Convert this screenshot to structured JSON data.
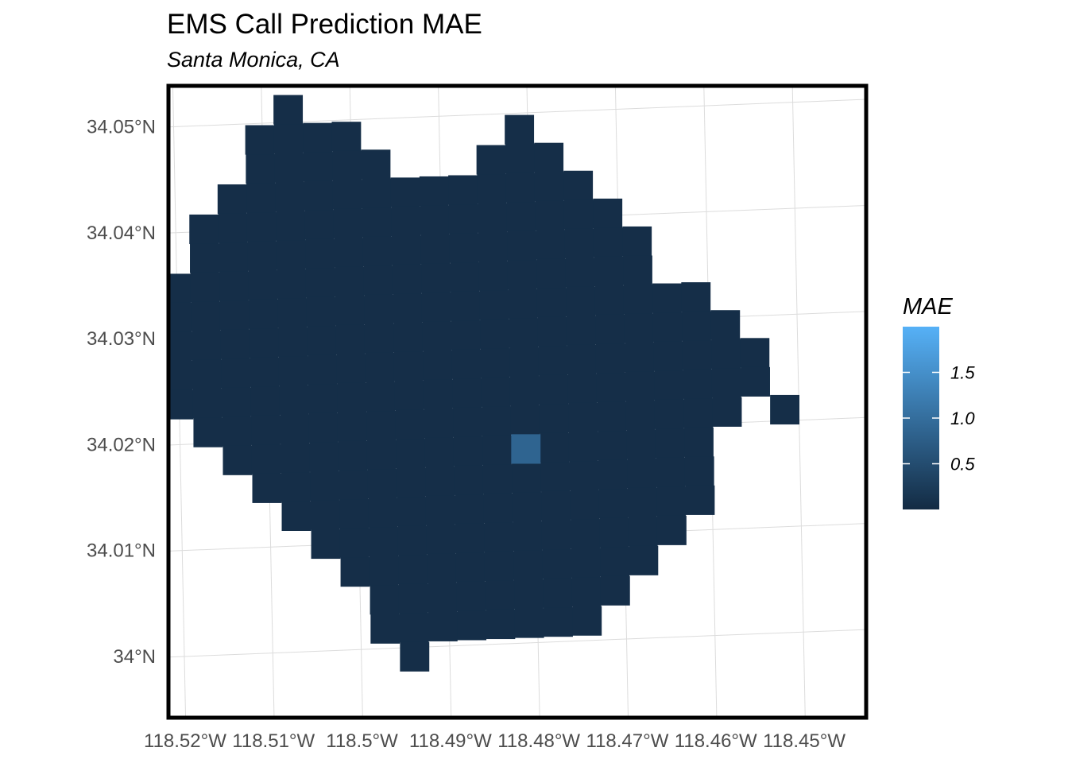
{
  "chart_data": {
    "type": "heatmap",
    "title": "EMS Call Prediction MAE",
    "subtitle": "Santa Monica, CA",
    "x_ticks": [
      "118.52°W",
      "118.51°W",
      "118.5°W",
      "118.49°W",
      "118.48°W",
      "118.47°W",
      "118.46°W",
      "118.45°W"
    ],
    "y_ticks": [
      "34.05°N",
      "34.04°N",
      "34.03°N",
      "34.02°N",
      "34.01°N",
      "34°N"
    ],
    "xlim": [
      -118.52,
      -118.441
    ],
    "ylim": [
      33.9965,
      34.0535
    ],
    "grid": true,
    "legend": {
      "title": "MAE",
      "ticks": [
        "0.5",
        "1.0",
        "1.5"
      ],
      "tick_values": [
        0.5,
        1.0,
        1.5
      ],
      "range": [
        0.0,
        2.0
      ],
      "low_color": "#132B43",
      "high_color": "#56B1F7",
      "placement": "right"
    },
    "cell_lon_width": 0.00326,
    "cell_lat_height": 0.00274,
    "default_mae": 0.05,
    "rows": [
      {
        "lat": 34.0512,
        "lon_start": -118.50705,
        "lon_end": -118.50705
      },
      {
        "lat": 34.04846,
        "lon_start": -118.51031,
        "lon_end": -118.50053
      },
      {
        "lat": 34.04846,
        "lon_start": -118.48097,
        "lon_end": -118.48097
      },
      {
        "lat": 34.04572,
        "lon_start": -118.51031,
        "lon_end": -118.49727
      },
      {
        "lat": 34.04572,
        "lon_start": -118.48423,
        "lon_end": -118.47771
      },
      {
        "lat": 34.04298,
        "lon_start": -118.51357,
        "lon_end": -118.47445
      },
      {
        "lat": 34.04024,
        "lon_start": -118.51683,
        "lon_end": -118.47119
      },
      {
        "lat": 34.0375,
        "lon_start": -118.51683,
        "lon_end": -118.46793
      },
      {
        "lat": 34.03476,
        "lon_start": -118.52009,
        "lon_end": -118.47119
      },
      {
        "lat": 34.03476,
        "lon_start": -118.46793,
        "lon_end": -118.46793
      },
      {
        "lat": 34.03202,
        "lon_start": -118.52335,
        "lon_end": -118.46141
      },
      {
        "lat": 34.02928,
        "lon_start": -118.52335,
        "lon_end": -118.45815
      },
      {
        "lat": 34.02654,
        "lon_start": -118.52661,
        "lon_end": -118.45489
      },
      {
        "lat": 34.0238,
        "lon_start": -118.52335,
        "lon_end": -118.45489
      },
      {
        "lat": 34.02106,
        "lon_start": -118.51683,
        "lon_end": -118.45815
      },
      {
        "lat": 34.02106,
        "lon_start": -118.45163,
        "lon_end": -118.45163
      },
      {
        "lat": 34.01832,
        "lon_start": -118.51357,
        "lon_end": -118.46141
      },
      {
        "lat": 34.01558,
        "lon_start": -118.51031,
        "lon_end": -118.46141
      },
      {
        "lat": 34.01284,
        "lon_start": -118.50705,
        "lon_end": -118.46141
      },
      {
        "lat": 34.0101,
        "lon_start": -118.50379,
        "lon_end": -118.46467
      },
      {
        "lat": 34.00736,
        "lon_start": -118.50053,
        "lon_end": -118.46793
      },
      {
        "lat": 34.00462,
        "lon_start": -118.49727,
        "lon_end": -118.47119
      },
      {
        "lat": 34.00188,
        "lon_start": -118.49727,
        "lon_end": -118.47445
      },
      {
        "lat": 33.99914,
        "lon_start": -118.49401,
        "lon_end": -118.49401
      }
    ],
    "highlighted_cells": [
      {
        "lat": 34.01832,
        "lon": -118.48097,
        "mae": 0.85
      }
    ]
  }
}
